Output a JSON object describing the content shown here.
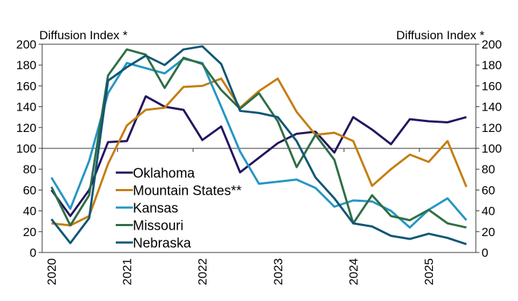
{
  "chart_data": {
    "type": "line",
    "ylabel_left": "Diffusion Index *",
    "ylabel_right": "Diffusion Index *",
    "ylim": [
      0,
      200
    ],
    "yticks": [
      0,
      20,
      40,
      60,
      80,
      100,
      120,
      140,
      160,
      180,
      200
    ],
    "reference_line": 100,
    "x_tick_labels": [
      "2020",
      "2021",
      "2022",
      "2023",
      "2024",
      "2025"
    ],
    "x": [
      "2020Q1",
      "2020Q2",
      "2020Q3",
      "2020Q4",
      "2021Q1",
      "2021Q2",
      "2021Q3",
      "2021Q4",
      "2022Q1",
      "2022Q2",
      "2022Q3",
      "2022Q4",
      "2023Q1",
      "2023Q2",
      "2023Q3",
      "2023Q4",
      "2024Q1",
      "2024Q2",
      "2024Q3",
      "2024Q4",
      "2025Q1",
      "2025Q2",
      "2025Q3"
    ],
    "legend_position": "lower-left",
    "grid": false,
    "series": [
      {
        "name": "Oklahoma",
        "color": "#24145e",
        "values": [
          60,
          35,
          60,
          106,
          107,
          150,
          140,
          137,
          108,
          121,
          77,
          91,
          105,
          114,
          116,
          96,
          130,
          118,
          104,
          128,
          126,
          125,
          130
        ]
      },
      {
        "name": "Mountain States**",
        "color": "#c47e12",
        "values": [
          28,
          26,
          35,
          85,
          122,
          137,
          139,
          159,
          160,
          167,
          139,
          155,
          167,
          135,
          113,
          115,
          107,
          64,
          80,
          94,
          87,
          107,
          63
        ]
      },
      {
        "name": "Kansas",
        "color": "#2596c4",
        "values": [
          72,
          42,
          88,
          153,
          182,
          177,
          172,
          186,
          182,
          140,
          97,
          66,
          68,
          70,
          62,
          44,
          50,
          49,
          40,
          24,
          41,
          52,
          31
        ]
      },
      {
        "name": "Missouri",
        "color": "#2e6e45",
        "values": [
          63,
          26,
          55,
          170,
          195,
          190,
          158,
          187,
          181,
          156,
          138,
          153,
          126,
          82,
          113,
          89,
          28,
          55,
          35,
          31,
          41,
          28,
          24
        ]
      },
      {
        "name": "Nebraska",
        "color": "#0f5676",
        "values": [
          32,
          9,
          33,
          165,
          178,
          189,
          180,
          195,
          198,
          181,
          136,
          134,
          130,
          107,
          72,
          52,
          28,
          25,
          16,
          13,
          18,
          14,
          8
        ]
      }
    ]
  }
}
